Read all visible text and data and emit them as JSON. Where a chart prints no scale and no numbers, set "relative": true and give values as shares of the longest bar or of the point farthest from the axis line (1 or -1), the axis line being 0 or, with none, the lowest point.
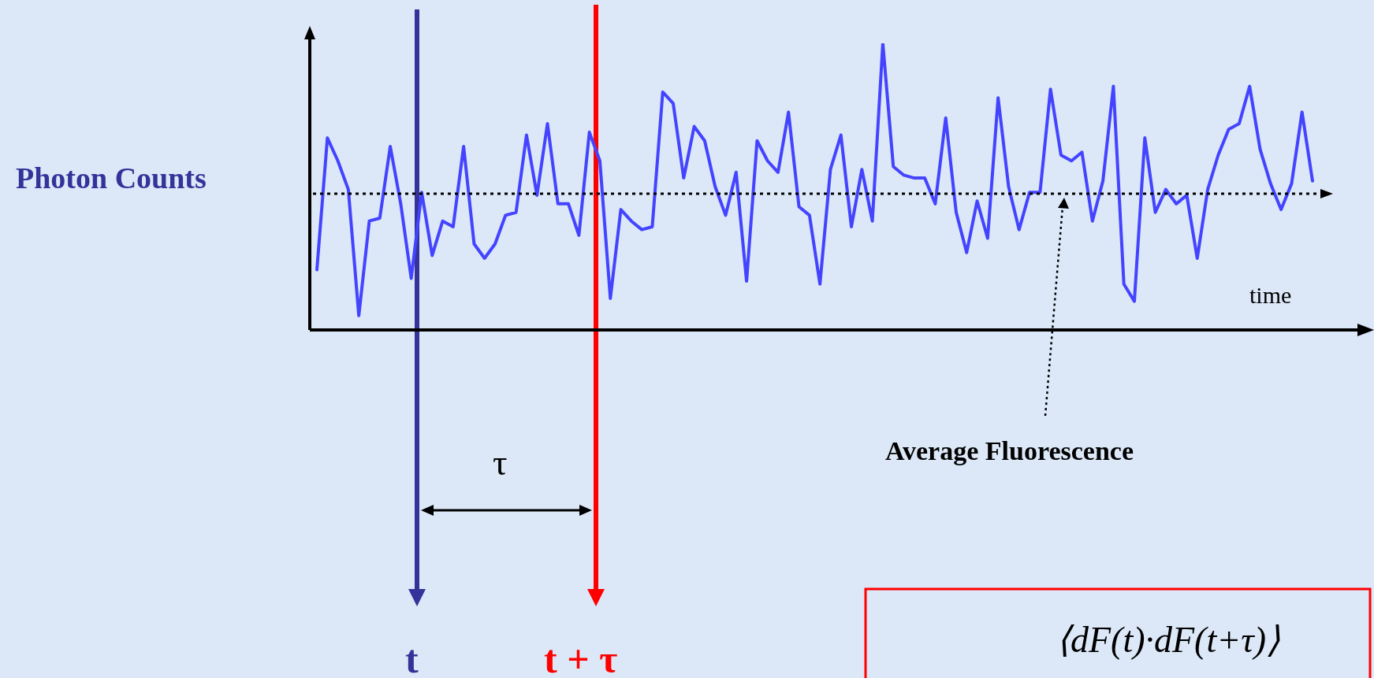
{
  "chart_data": {
    "type": "line",
    "relative": true,
    "xlabel": "time",
    "ylabel": "Photon Counts",
    "categories": [
      null,
      null,
      null,
      null,
      null,
      null,
      null,
      null,
      null,
      null,
      null,
      null,
      null,
      null,
      null,
      null,
      null,
      null,
      null,
      null,
      null,
      null,
      null,
      null,
      null,
      null,
      null,
      null,
      null,
      null,
      null,
      null,
      null,
      null,
      null,
      null,
      null,
      null,
      null,
      null,
      null,
      null,
      null,
      null,
      null,
      null,
      null,
      null,
      null,
      null,
      null,
      null,
      null,
      null,
      null,
      null,
      null,
      null,
      null,
      null,
      null,
      null,
      null,
      null,
      null,
      null,
      null,
      null,
      null,
      null,
      null,
      null,
      null,
      null,
      null,
      null,
      null,
      null,
      null,
      null,
      null,
      null,
      null,
      null,
      null,
      null,
      null,
      null,
      null,
      null,
      null,
      null,
      null,
      null,
      null,
      null
    ],
    "series": [
      {
        "color": "#4444ff",
        "values": [
          0.21,
          0.67,
          0.59,
          0.49,
          0.05,
          0.38,
          0.39,
          0.64,
          0.44,
          0.18,
          0.48,
          0.26,
          0.38,
          0.36,
          0.64,
          0.3,
          0.25,
          0.3,
          0.4,
          0.41,
          0.68,
          0.47,
          0.72,
          0.44,
          0.44,
          0.33,
          0.69,
          0.59,
          0.11,
          0.42,
          0.38,
          0.35,
          0.36,
          0.83,
          0.79,
          0.53,
          0.71,
          0.66,
          0.5,
          0.4,
          0.55,
          0.17,
          0.66,
          0.59,
          0.55,
          0.76,
          0.43,
          0.4,
          0.16,
          0.56,
          0.68,
          0.36,
          0.56,
          0.38,
          1.0,
          0.57,
          0.54,
          0.53,
          0.53,
          0.44,
          0.74,
          0.41,
          0.27,
          0.45,
          0.32,
          0.81,
          0.5,
          0.35,
          0.48,
          0.48,
          0.84,
          0.61,
          0.59,
          0.62,
          0.38,
          0.52,
          0.85,
          0.16,
          0.1,
          0.67,
          0.41,
          0.49,
          0.44,
          0.47,
          0.25,
          0.49,
          0.61,
          0.7,
          0.72,
          0.85,
          0.63,
          0.51,
          0.42,
          0.51,
          0.76,
          0.52
        ]
      }
    ],
    "ref_lines": [
      {
        "axis": "y",
        "value": 0.475,
        "label": "Average Fluorescence",
        "color": "#000000",
        "line_style": "dotted"
      }
    ],
    "annotations": [
      "t",
      "t + τ",
      "τ",
      "⟨dF(t)·dF(t+τ)⟩"
    ],
    "marker": "none",
    "line_style": "solid",
    "legend": false
  }
}
